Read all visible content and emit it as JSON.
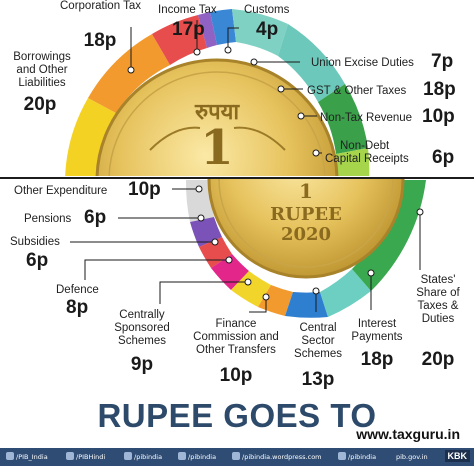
{
  "top_labels": {
    "corporation_tax": {
      "name": "Corporation Tax",
      "value": "18p"
    },
    "income_tax": {
      "name": "Income Tax",
      "value": "17p"
    },
    "customs": {
      "name": "Customs",
      "value": "4p"
    },
    "borrowings": {
      "name_line1": "Borrowings",
      "name_line2": "and Other",
      "name_line3": "Liabilities",
      "value": "20p"
    },
    "union_excise": {
      "name": "Union Excise Duties",
      "value": "7p"
    },
    "gst": {
      "name": "GST & Other Taxes",
      "value": "18p"
    },
    "non_tax": {
      "name": "Non-Tax Revenue",
      "value": "10p"
    },
    "non_debt": {
      "name_line1": "Non-Debt",
      "name_line2": "Capital Receipts",
      "value": "6p"
    }
  },
  "bottom_labels": {
    "other_expenditure": {
      "name": "Other Expenditure",
      "value": "10p"
    },
    "pensions": {
      "name": "Pensions",
      "value": "6p"
    },
    "subsidies": {
      "name": "Subsidies",
      "value": "6p"
    },
    "defence": {
      "name": "Defence",
      "value": "8p"
    },
    "css": {
      "name_line1": "Centrally",
      "name_line2": "Sponsored",
      "name_line3": "Schemes",
      "value": "9p"
    },
    "finance_commission": {
      "name_line1": "Finance",
      "name_line2": "Commission and",
      "name_line3": "Other Transfers",
      "value": "10p"
    },
    "central_sector": {
      "name_line1": "Central",
      "name_line2": "Sector",
      "name_line3": "Schemes",
      "value": "13p"
    },
    "interest": {
      "name_line1": "Interest",
      "name_line2": "Payments",
      "value": "18p"
    },
    "states_share": {
      "name_line1": "States'",
      "name_line2": "Share of",
      "name_line3": "Taxes &",
      "name_line4": "Duties",
      "value": "20p"
    }
  },
  "coin": {
    "top_symbol": "₹",
    "top_script": "रुपया",
    "top_numeral": "1",
    "bottom_numeral": "1",
    "bottom_word": "RUPEE",
    "bottom_year": "2020"
  },
  "heading": "RUPEE GOES TO",
  "website": "www.taxguru.in",
  "footer": {
    "items": [
      "/PIB_India",
      "/PIBHindi",
      "/pibindia",
      "/pibindia",
      "/pibindia.wordpress.com",
      "/pibindia",
      "pib.gov.in"
    ],
    "badge": "KBK"
  },
  "colors": {
    "rupee_comes_from": {
      "borrowings": "#f4d224",
      "corporation_tax": "#f29a2e",
      "income_tax": "#8f62c4",
      "customs": "#3a87d6",
      "union_excise": "#7fd1c4",
      "gst": "#6cc8bb",
      "non_tax": "#3aa14a",
      "non_debt": "#a6d44b"
    },
    "rupee_goes_to": {
      "other_expenditure": "#d9d9d9",
      "pensions": "#7a52b8",
      "subsidies": "#e84d4d",
      "defence": "#e3268a",
      "css": "#f2d52a",
      "finance_commission": "#f29a2e",
      "central_sector": "#2f7fd1",
      "interest": "#6ccfc2",
      "states_share": "#3aa84e"
    },
    "heading": "#2d4a6b",
    "footer": "#2f4c74"
  }
}
